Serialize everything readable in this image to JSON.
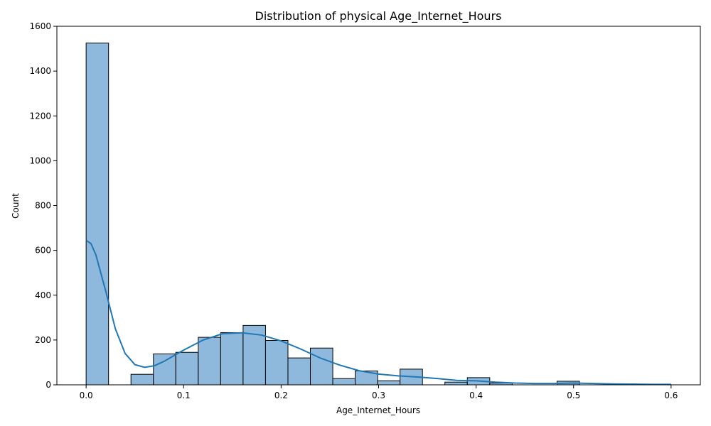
{
  "chart_data": {
    "type": "bar",
    "title": "Distribution of physical Age_Internet_Hours",
    "xlabel": "Age_Internet_Hours",
    "ylabel": "Count",
    "xlim": [
      -0.03,
      0.63
    ],
    "ylim": [
      0,
      1600
    ],
    "x_ticks": [
      0.0,
      0.1,
      0.2,
      0.3,
      0.4,
      0.5,
      0.6
    ],
    "x_tick_labels": [
      "0.0",
      "0.1",
      "0.2",
      "0.3",
      "0.4",
      "0.5",
      "0.6"
    ],
    "y_ticks": [
      0,
      200,
      400,
      600,
      800,
      1000,
      1200,
      1400,
      1600
    ],
    "y_tick_labels": [
      "0",
      "200",
      "400",
      "600",
      "800",
      "1000",
      "1200",
      "1400",
      "1600"
    ],
    "grid": false,
    "bar_color": "#8fb9dc",
    "edge_color": "#000000",
    "kde_color": "#1f77b4",
    "bins": [
      {
        "x0": 0.0,
        "x1": 0.023,
        "count": 1525
      },
      {
        "x0": 0.023,
        "x1": 0.046,
        "count": 0
      },
      {
        "x0": 0.046,
        "x1": 0.069,
        "count": 47
      },
      {
        "x0": 0.069,
        "x1": 0.092,
        "count": 138
      },
      {
        "x0": 0.092,
        "x1": 0.115,
        "count": 145
      },
      {
        "x0": 0.115,
        "x1": 0.138,
        "count": 212
      },
      {
        "x0": 0.138,
        "x1": 0.161,
        "count": 233
      },
      {
        "x0": 0.161,
        "x1": 0.184,
        "count": 265
      },
      {
        "x0": 0.184,
        "x1": 0.207,
        "count": 198
      },
      {
        "x0": 0.207,
        "x1": 0.23,
        "count": 120
      },
      {
        "x0": 0.23,
        "x1": 0.253,
        "count": 164
      },
      {
        "x0": 0.253,
        "x1": 0.276,
        "count": 28
      },
      {
        "x0": 0.276,
        "x1": 0.299,
        "count": 62
      },
      {
        "x0": 0.299,
        "x1": 0.322,
        "count": 18
      },
      {
        "x0": 0.322,
        "x1": 0.345,
        "count": 70
      },
      {
        "x0": 0.345,
        "x1": 0.368,
        "count": 0
      },
      {
        "x0": 0.368,
        "x1": 0.391,
        "count": 12
      },
      {
        "x0": 0.391,
        "x1": 0.414,
        "count": 32
      },
      {
        "x0": 0.414,
        "x1": 0.437,
        "count": 8
      },
      {
        "x0": 0.437,
        "x1": 0.46,
        "count": 0
      },
      {
        "x0": 0.46,
        "x1": 0.483,
        "count": 0
      },
      {
        "x0": 0.483,
        "x1": 0.506,
        "count": 16
      },
      {
        "x0": 0.506,
        "x1": 0.529,
        "count": 0
      },
      {
        "x0": 0.529,
        "x1": 0.552,
        "count": 0
      },
      {
        "x0": 0.552,
        "x1": 0.575,
        "count": 0
      },
      {
        "x0": 0.575,
        "x1": 0.598,
        "count": 3
      }
    ],
    "kde": {
      "x": [
        0.0,
        0.005,
        0.01,
        0.02,
        0.03,
        0.04,
        0.05,
        0.06,
        0.07,
        0.08,
        0.1,
        0.12,
        0.14,
        0.16,
        0.18,
        0.2,
        0.22,
        0.24,
        0.26,
        0.28,
        0.3,
        0.32,
        0.34,
        0.36,
        0.38,
        0.4,
        0.42,
        0.44,
        0.46,
        0.48,
        0.5,
        0.52,
        0.54,
        0.56,
        0.58,
        0.6
      ],
      "y": [
        645,
        630,
        580,
        420,
        250,
        140,
        90,
        78,
        85,
        105,
        155,
        200,
        228,
        232,
        222,
        196,
        160,
        120,
        88,
        63,
        48,
        40,
        35,
        28,
        20,
        18,
        12,
        8,
        6,
        6,
        8,
        6,
        4,
        3,
        2,
        2
      ]
    }
  }
}
